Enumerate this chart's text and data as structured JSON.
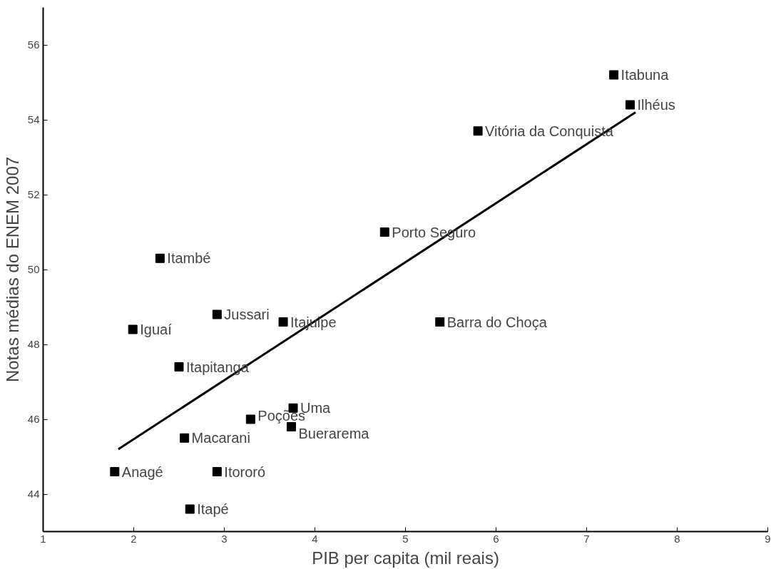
{
  "chart_data": {
    "type": "scatter",
    "xlabel": "PIB per capita (mil reais)",
    "ylabel": "Notas médias do ENEM 2007",
    "xlim": [
      1,
      9
    ],
    "ylim": [
      43,
      57
    ],
    "xticks": [
      1,
      2,
      3,
      4,
      5,
      6,
      7,
      8,
      9
    ],
    "yticks": [
      44,
      46,
      48,
      50,
      52,
      54,
      56
    ],
    "grid": false,
    "series": [
      {
        "marker": "square",
        "color": "#000000",
        "x": [
          7.3,
          7.48,
          5.8,
          4.77,
          2.29,
          2.92,
          3.65,
          5.38,
          1.99,
          2.5,
          3.76,
          3.29,
          3.74,
          2.56,
          1.79,
          2.92,
          2.62
        ],
        "values": [
          55.2,
          54.4,
          53.7,
          51.0,
          50.3,
          48.8,
          48.6,
          48.6,
          48.4,
          47.4,
          46.3,
          46.0,
          45.8,
          45.5,
          44.6,
          44.6,
          43.6
        ]
      },
      {
        "type": "line",
        "color": "#000000",
        "x": [
          1.83,
          7.54
        ],
        "values": [
          45.2,
          54.2
        ]
      }
    ],
    "annotations": [
      {
        "text": "Itabuna",
        "x": 7.3,
        "y": 55.2
      },
      {
        "text": "Ilhéus",
        "x": 7.48,
        "y": 54.4
      },
      {
        "text": "Vitória da Conquista",
        "x": 5.8,
        "y": 53.7
      },
      {
        "text": "Porto Seguro",
        "x": 4.77,
        "y": 51.0
      },
      {
        "text": "Itambé",
        "x": 2.29,
        "y": 50.3
      },
      {
        "text": "Jussari",
        "x": 2.92,
        "y": 48.8
      },
      {
        "text": "Itajuipe",
        "x": 3.65,
        "y": 48.6
      },
      {
        "text": "Barra do Choça",
        "x": 5.38,
        "y": 48.6
      },
      {
        "text": "Iguaí",
        "x": 1.99,
        "y": 48.4
      },
      {
        "text": "Itapitanga",
        "x": 2.5,
        "y": 47.4
      },
      {
        "text": "Uma",
        "x": 3.76,
        "y": 46.3
      },
      {
        "text": "Poções",
        "x": 3.29,
        "y": 46.0
      },
      {
        "text": "Buerarema",
        "x": 3.74,
        "y": 45.8
      },
      {
        "text": "Macarani",
        "x": 2.56,
        "y": 45.5
      },
      {
        "text": "Anagé",
        "x": 1.79,
        "y": 44.6
      },
      {
        "text": "Itororó",
        "x": 2.92,
        "y": 44.6
      },
      {
        "text": "Itapé",
        "x": 2.62,
        "y": 43.6
      }
    ]
  }
}
